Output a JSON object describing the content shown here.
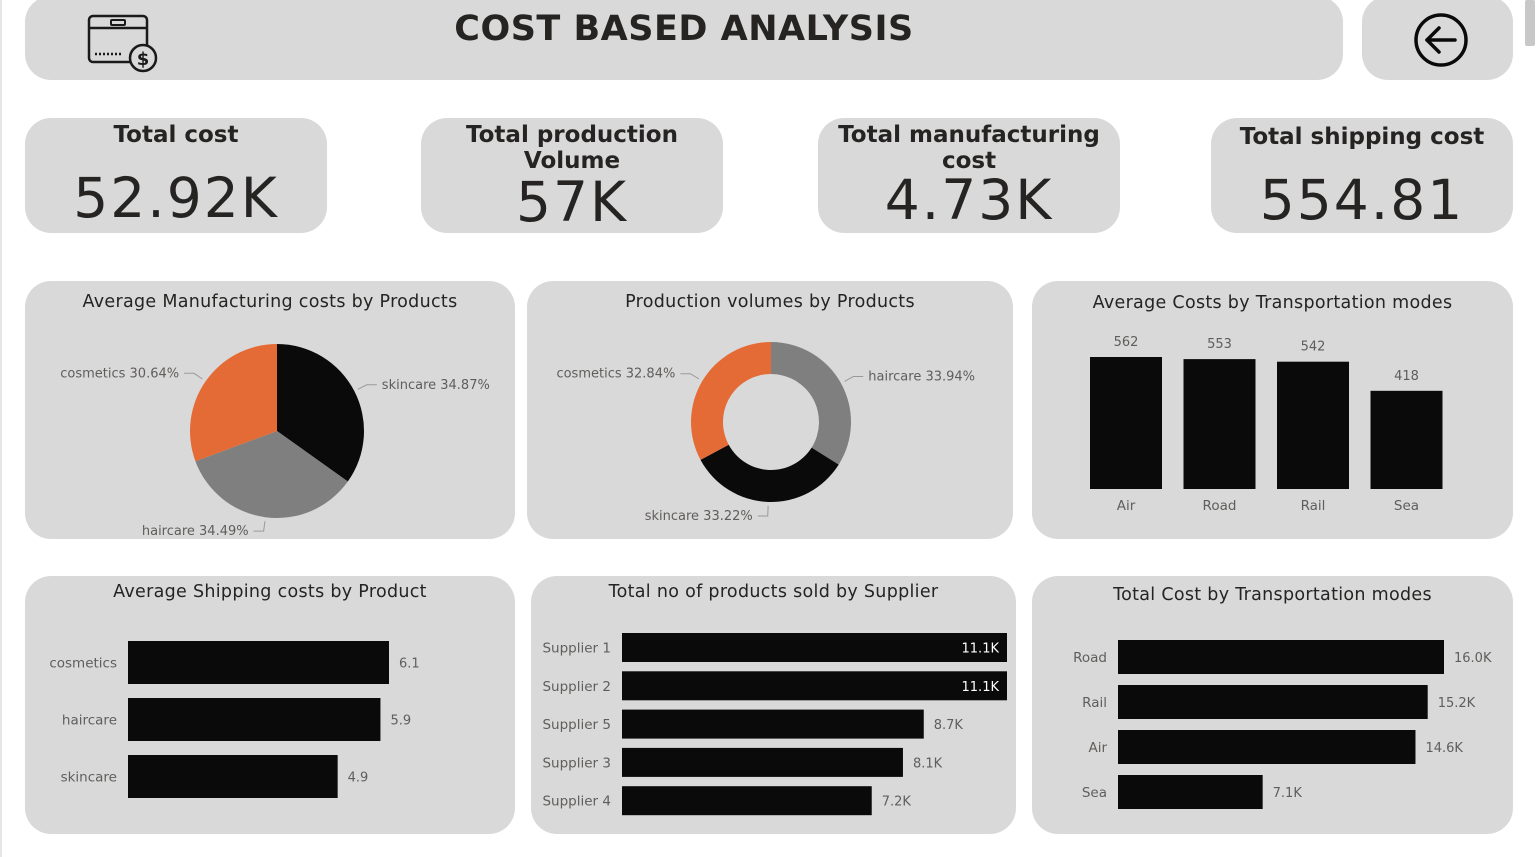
{
  "header": {
    "title": "COST BASED ANALYSIS",
    "logo_icon": "box-dollar-icon",
    "back_icon": "arrow-left-circle-icon"
  },
  "kpis": [
    {
      "label": "Total cost",
      "value": "52.92K"
    },
    {
      "label": "Total production Volume",
      "value": "57K"
    },
    {
      "label": "Total manufacturing cost",
      "value": "4.73K"
    },
    {
      "label": "Total shipping cost",
      "value": "554.81"
    }
  ],
  "colors": {
    "panel": "#d9d9d9",
    "bar": "#0a0a0a",
    "accent_orange": "#e56b36",
    "gray": "#7f7f7f",
    "label": "#605e5c"
  },
  "chart_data": [
    {
      "type": "pie",
      "title": "Average Manufacturing costs by Products",
      "categories": [
        "skincare",
        "haircare",
        "cosmetics"
      ],
      "values": [
        34.87,
        34.49,
        30.64
      ],
      "labels": [
        "skincare 34.87%",
        "haircare 34.49%",
        "cosmetics 30.64%"
      ],
      "colors": [
        "#0a0a0a",
        "#7f7f7f",
        "#e56b36"
      ]
    },
    {
      "type": "pie",
      "subtype": "donut",
      "title": "Production volumes by Products",
      "categories": [
        "haircare",
        "skincare",
        "cosmetics"
      ],
      "values": [
        33.94,
        33.22,
        32.84
      ],
      "labels": [
        "haircare 33.94%",
        "skincare 33.22%",
        "cosmetics 32.84%"
      ],
      "colors": [
        "#7f7f7f",
        "#0a0a0a",
        "#e56b36"
      ]
    },
    {
      "type": "bar",
      "orientation": "vertical",
      "title": "Average Costs by Transportation modes",
      "categories": [
        "Air",
        "Road",
        "Rail",
        "Sea"
      ],
      "values": [
        562,
        553,
        542,
        418
      ],
      "data_labels": [
        "562",
        "553",
        "542",
        "418"
      ],
      "ylim": [
        0,
        562
      ]
    },
    {
      "type": "bar",
      "orientation": "horizontal",
      "title": "Average Shipping costs by Product",
      "categories": [
        "cosmetics",
        "haircare",
        "skincare"
      ],
      "values": [
        6.1,
        5.9,
        4.9
      ],
      "data_labels": [
        "6.1",
        "5.9",
        "4.9"
      ],
      "xlim": [
        0,
        6.1
      ]
    },
    {
      "type": "bar",
      "orientation": "horizontal",
      "title": "Total no of products sold by Supplier",
      "categories": [
        "Supplier 1",
        "Supplier 2",
        "Supplier 5",
        "Supplier 3",
        "Supplier 4"
      ],
      "values": [
        11100,
        11100,
        8700,
        8100,
        7200
      ],
      "data_labels": [
        "11.1K",
        "11.1K",
        "8.7K",
        "8.1K",
        "7.2K"
      ],
      "xlim": [
        0,
        11100
      ]
    },
    {
      "type": "bar",
      "orientation": "horizontal",
      "title": "Total Cost by Transportation modes",
      "categories": [
        "Road",
        "Rail",
        "Air",
        "Sea"
      ],
      "values": [
        16000,
        15200,
        14600,
        7100
      ],
      "data_labels": [
        "16.0K",
        "15.2K",
        "14.6K",
        "7.1K"
      ],
      "xlim": [
        0,
        16000
      ]
    }
  ]
}
